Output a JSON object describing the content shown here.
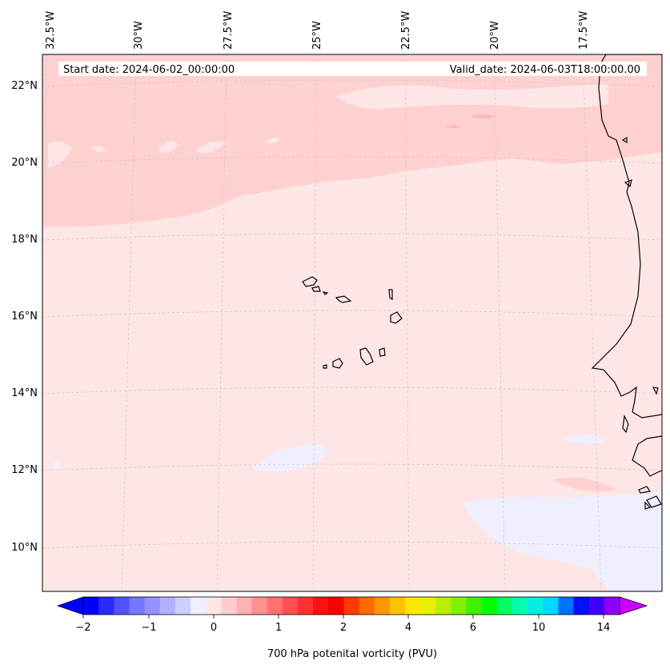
{
  "map": {
    "start_label": "Start date: 2024-06-02_00:00:00",
    "valid_label": "Valid_date: 2024-06-03T18:00:00.00",
    "lon_labels": [
      "32.5°W",
      "30°W",
      "27.5°W",
      "25°W",
      "22.5°W",
      "20°W",
      "17.5°W"
    ],
    "lat_labels": [
      "22°N",
      "20°N",
      "18°N",
      "16°N",
      "14°N",
      "12°N",
      "10°N"
    ],
    "field_colors": {
      "background": "#ffe6e6",
      "band": "#ffd0d0",
      "negative": "#eef0ff",
      "coast": "#000000"
    }
  },
  "colorbar": {
    "title": "700 hPa potenital vorticity (PVU)",
    "ticks": [
      "−2",
      "−1",
      "0",
      "1",
      "2",
      "4",
      "6",
      "10",
      "14"
    ],
    "colors": [
      "#0000ff",
      "#2a2aff",
      "#5050ff",
      "#7676ff",
      "#9393ff",
      "#b0b0ff",
      "#cfcfff",
      "#eeeeff",
      "#ffe6e6",
      "#ffcccc",
      "#ffb0b0",
      "#ff9090",
      "#ff7070",
      "#ff5050",
      "#ff3030",
      "#ff1010",
      "#ff0000",
      "#ff3a00",
      "#ff6a00",
      "#ff9600",
      "#ffc000",
      "#ffe800",
      "#e8f000",
      "#b8f000",
      "#80f000",
      "#40f000",
      "#00ff00",
      "#00ff60",
      "#00ffb0",
      "#00f0e0",
      "#00d8ff",
      "#0070ff",
      "#0010ff",
      "#4000ff",
      "#9000ff"
    ],
    "extend_min_color": "#0000ff",
    "extend_max_color": "#cc00ff"
  }
}
